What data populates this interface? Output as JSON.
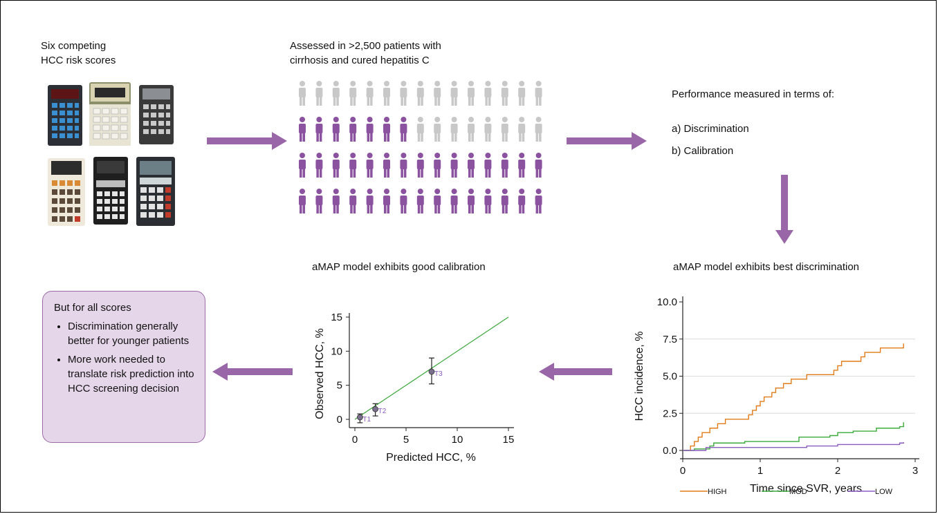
{
  "step1": {
    "line1": "Six  competing",
    "line2": "HCC risk scores"
  },
  "step2": {
    "line1": "Assessed in >2,500 patients with",
    "line2": "cirrhosis and cured hepatitis C"
  },
  "step3": {
    "heading": "Performance measured in terms of:",
    "item_a": "a) Discrimination",
    "item_b": "b) Calibration"
  },
  "step4": {
    "title": "aMAP model exhibits best discrimination"
  },
  "step5": {
    "title": "aMAP model exhibits good calibration"
  },
  "summary": {
    "heading": "But for all scores",
    "bullets": [
      "Discrimination generally better for younger patients",
      "More work needed to translate risk prediction into HCC screening decision"
    ]
  },
  "people_grid": {
    "rows": 4,
    "cols": 15,
    "highlighted_row2": 7,
    "colors": {
      "grey": "#c8c8c8",
      "purple": "#8b52a0"
    }
  },
  "colors": {
    "arrow": "#9966a8",
    "high": "#e07b17",
    "mod": "#3aaa3a",
    "low": "#8a5bbf",
    "calib_line": "#3aaa3a"
  },
  "chart_data": [
    {
      "type": "line",
      "title": "aMAP model exhibits best discrimination",
      "xlabel": "Time since SVR, years",
      "ylabel": "HCC incidence, %",
      "xlim": [
        0,
        3
      ],
      "ylim": [
        0,
        10
      ],
      "xticks": [
        "0",
        "1",
        "2",
        "3"
      ],
      "yticks": [
        "0.0",
        "2.5",
        "5.0",
        "7.5",
        "10.0"
      ],
      "grid": true,
      "legend_position": "bottom",
      "series": [
        {
          "name": "HIGH",
          "x": [
            0,
            0.1,
            0.15,
            0.2,
            0.25,
            0.3,
            0.35,
            0.4,
            0.45,
            0.5,
            0.55,
            0.8,
            0.85,
            0.9,
            0.95,
            1.0,
            1.05,
            1.15,
            1.2,
            1.3,
            1.35,
            1.4,
            1.45,
            1.6,
            1.8,
            1.95,
            2.0,
            2.05,
            2.1,
            2.3,
            2.35,
            2.5,
            2.55,
            2.8,
            2.85
          ],
          "y": [
            0,
            0.3,
            0.6,
            0.9,
            1.2,
            1.2,
            1.5,
            1.5,
            1.8,
            1.8,
            2.1,
            2.1,
            2.4,
            2.7,
            3.0,
            3.3,
            3.6,
            3.9,
            4.2,
            4.5,
            4.5,
            4.8,
            4.8,
            5.1,
            5.1,
            5.4,
            5.7,
            6.0,
            6.0,
            6.3,
            6.6,
            6.6,
            6.9,
            6.9,
            7.2
          ]
        },
        {
          "name": "MOD",
          "x": [
            0,
            0.15,
            0.35,
            0.4,
            0.8,
            1.0,
            1.5,
            1.9,
            2.0,
            2.2,
            2.5,
            2.8,
            2.85
          ],
          "y": [
            0,
            0.1,
            0.3,
            0.5,
            0.6,
            0.6,
            0.9,
            1.0,
            1.2,
            1.3,
            1.5,
            1.6,
            1.9
          ]
        },
        {
          "name": "LOW",
          "x": [
            0,
            0.25,
            0.3,
            1.0,
            1.6,
            2.0,
            2.8,
            2.85
          ],
          "y": [
            0,
            0,
            0.2,
            0.2,
            0.3,
            0.4,
            0.5,
            0.55
          ]
        }
      ]
    },
    {
      "type": "scatter",
      "title": "aMAP model exhibits good calibration",
      "xlabel": "Predicted HCC, %",
      "ylabel": "Observed HCC, %",
      "xlim": [
        0,
        15
      ],
      "ylim": [
        0,
        15
      ],
      "xticks": [
        "0",
        "5",
        "10",
        "15"
      ],
      "yticks": [
        "0",
        "5",
        "10",
        "15"
      ],
      "points": [
        {
          "label": "T1",
          "x": 0.5,
          "y": 0.3,
          "err_low": -0.5,
          "err_high": 0.8
        },
        {
          "label": "T2",
          "x": 2.0,
          "y": 1.5,
          "err_low": 0.5,
          "err_high": 2.3
        },
        {
          "label": "T3",
          "x": 7.5,
          "y": 7.0,
          "err_low": 5.2,
          "err_high": 9.0
        }
      ],
      "reference_line": {
        "x": [
          0,
          15
        ],
        "y": [
          0,
          15
        ]
      }
    }
  ]
}
